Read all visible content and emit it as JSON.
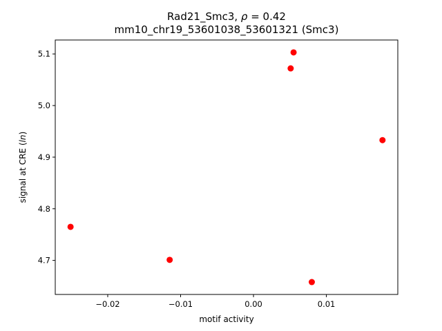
{
  "chart_data": {
    "type": "scatter",
    "title_line1_prefix": "Rad21_Smc3, ",
    "title_line1_rho": "ρ",
    "title_line1_suffix": " = 0.42",
    "title_line2": "mm10_chr19_53601038_53601321 (Smc3)",
    "xlabel": "motif activity",
    "ylabel_prefix": "signal at CRE (",
    "ylabel_italic": "ln",
    "ylabel_suffix": ")",
    "xlim": [
      -0.0272,
      0.0198
    ],
    "ylim": [
      4.634,
      5.127
    ],
    "xticks": [
      -0.02,
      -0.01,
      0.0,
      0.01
    ],
    "xtick_labels": [
      "−0.02",
      "−0.01",
      "0.00",
      "0.01"
    ],
    "yticks": [
      4.7,
      4.8,
      4.9,
      5.0,
      5.1
    ],
    "ytick_labels": [
      "4.7",
      "4.8",
      "4.9",
      "5.0",
      "5.1"
    ],
    "marker_color": "#ff0000",
    "points": [
      {
        "x": -0.0251,
        "y": 4.765
      },
      {
        "x": -0.0115,
        "y": 4.701
      },
      {
        "x": 0.0051,
        "y": 5.072
      },
      {
        "x": 0.0055,
        "y": 5.103
      },
      {
        "x": 0.008,
        "y": 4.658
      },
      {
        "x": 0.0177,
        "y": 4.933
      }
    ]
  }
}
